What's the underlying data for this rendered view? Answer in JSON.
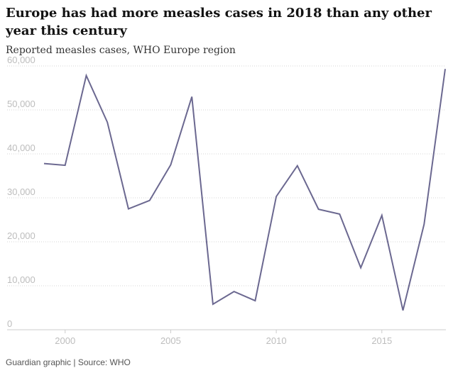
{
  "header": {
    "title": "Europe has had more measles cases in 2018 than any other year this century",
    "subtitle": "Reported measles cases, WHO Europe region"
  },
  "footer": {
    "credit": "Guardian graphic | Source: WHO"
  },
  "chart_data": {
    "type": "line",
    "title": "Europe has had more measles cases in 2018 than any other year this century",
    "subtitle": "Reported measles cases, WHO Europe region",
    "x": [
      1999,
      2000,
      2001,
      2002,
      2003,
      2004,
      2005,
      2006,
      2007,
      2008,
      2009,
      2010,
      2011,
      2012,
      2013,
      2014,
      2015,
      2016,
      2017,
      2018
    ],
    "series": [
      {
        "values": [
          37800,
          37400,
          57800,
          47200,
          27500,
          29400,
          37500,
          53000,
          5800,
          8700,
          6600,
          30300,
          37300,
          27400,
          26300,
          14100,
          26000,
          4400,
          24000,
          59300
        ]
      }
    ],
    "xlim": [
      1999,
      2018
    ],
    "ylim": [
      0,
      60000
    ],
    "xticks": [
      2000,
      2005,
      2010,
      2015
    ],
    "xtick_labels": [
      "2000",
      "2005",
      "2010",
      "2015"
    ],
    "yticks": [
      0,
      10000,
      20000,
      30000,
      40000,
      50000,
      60000
    ],
    "ytick_labels": [
      "0",
      "10,000",
      "20,000",
      "30,000",
      "40,000",
      "50,000",
      "60,000"
    ],
    "grid": "horizontal-dotted",
    "line_color": "#6b6890",
    "grid_color": "#d4d4d4",
    "axis_color": "#cccccc"
  }
}
